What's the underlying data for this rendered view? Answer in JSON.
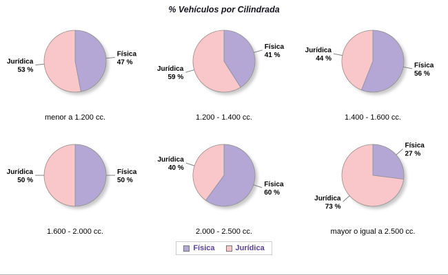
{
  "title": "% Vehículos por Cilindrada",
  "unit_suffix": " %",
  "legend": {
    "items": [
      {
        "label": "Física",
        "color": "#b4a7d6"
      },
      {
        "label": "Jurídica",
        "color": "#f9c6c9"
      }
    ],
    "text_color": "#5b3f9e"
  },
  "colors": {
    "outline": "#8f8f8f",
    "shadow": "#9e9e9e",
    "leader_line": "#808080",
    "label_text": "#000000",
    "title_text": "#15151f"
  },
  "chart_data": [
    {
      "type": "pie",
      "title": "menor a 1.200 cc.",
      "labels": [
        "Física",
        "Jurídica"
      ],
      "values": [
        47,
        53
      ]
    },
    {
      "type": "pie",
      "title": "1.200 - 1.400 cc.",
      "labels": [
        "Física",
        "Jurídica"
      ],
      "values": [
        41,
        59
      ]
    },
    {
      "type": "pie",
      "title": "1.400 - 1.600 cc.",
      "labels": [
        "Física",
        "Jurídica"
      ],
      "values": [
        56,
        44
      ]
    },
    {
      "type": "pie",
      "title": "1.600 - 2.000 cc.",
      "labels": [
        "Física",
        "Jurídica"
      ],
      "values": [
        50,
        50
      ]
    },
    {
      "type": "pie",
      "title": "2.000 - 2.500 cc.",
      "labels": [
        "Física",
        "Jurídica"
      ],
      "values": [
        60,
        40
      ]
    },
    {
      "type": "pie",
      "title": "mayor o igual a 2.500 cc.",
      "labels": [
        "Física",
        "Jurídica"
      ],
      "values": [
        27,
        73
      ]
    }
  ]
}
